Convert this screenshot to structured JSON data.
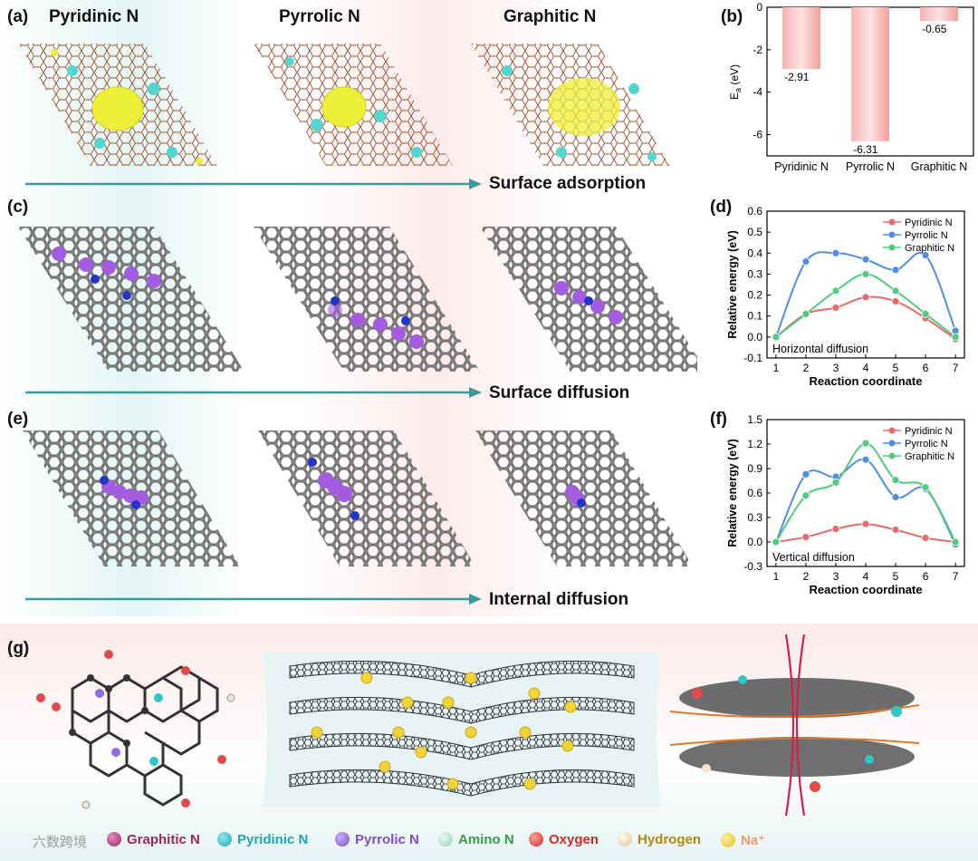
{
  "panels": {
    "a": "(a)",
    "b": "(b)",
    "c": "(c)",
    "d": "(d)",
    "e": "(e)",
    "f": "(f)",
    "g": "(g)"
  },
  "columns": {
    "pyridinic": "Pyridinic N",
    "pyrrolic": "Pyrrolic N",
    "graphitic": "Graphitic N"
  },
  "flows": {
    "adsorption": "Surface adsorption",
    "surface_diffusion": "Surface diffusion",
    "internal_diffusion": "Internal diffusion"
  },
  "legend": [
    {
      "label": "Graphitic N",
      "color": "#a0265a"
    },
    {
      "label": "Pyridinic N",
      "color": "#1ea6b5"
    },
    {
      "label": "Pyrrolic N",
      "color": "#7f4fcf"
    },
    {
      "label": "Amino N",
      "color": "#3c9a4c"
    },
    {
      "label": "Oxygen",
      "color": "#d42a2a"
    },
    {
      "label": "Hydrogen",
      "color": "#b8860b"
    },
    {
      "label": "Na⁺",
      "color": "#f39a6a"
    }
  ],
  "watermark": "六数跨境",
  "colors": {
    "pyridinic": "#e86b6b",
    "pyrrolic": "#4f8ee0",
    "graphitic": "#4fcd7d",
    "arrow": "#3e9a96",
    "bar": "#f39c9c"
  },
  "chart_data": [
    {
      "id": "b",
      "type": "bar",
      "categories": [
        "Pyridinic N",
        "Pyrrolic N",
        "Graphitic N"
      ],
      "values": [
        -2.91,
        -6.31,
        -0.65
      ],
      "data_labels": [
        "-2.91",
        "-6.31",
        "-0.65"
      ],
      "ylabel": "E",
      "ylabel_sub": "a",
      "ylabel_unit": " (eV)",
      "ylim": [
        -7,
        0
      ],
      "yticks": [
        "0",
        "-2",
        "-4",
        "-6"
      ]
    },
    {
      "id": "d",
      "type": "line",
      "x": [
        1,
        2,
        3,
        4,
        5,
        6,
        7
      ],
      "series": [
        {
          "name": "Pyridinic N",
          "values": [
            0,
            0.11,
            0.14,
            0.19,
            0.17,
            0.09,
            -0.01
          ]
        },
        {
          "name": "Pyrrolic N",
          "values": [
            0,
            0.36,
            0.4,
            0.37,
            0.32,
            0.39,
            0.03
          ]
        },
        {
          "name": "Graphitic N",
          "values": [
            0,
            0.11,
            0.22,
            0.3,
            0.22,
            0.11,
            0
          ]
        }
      ],
      "xlabel": "Reaction coordinate",
      "ylabel": "Relative energy (eV)",
      "ylim": [
        -0.1,
        0.6
      ],
      "yticks": [
        "-0.1",
        "0.0",
        "0.1",
        "0.2",
        "0.3",
        "0.4",
        "0.5",
        "0.6"
      ],
      "xticks": [
        "1",
        "2",
        "3",
        "4",
        "5",
        "6",
        "7"
      ],
      "annotation": "Horizontal diffusion"
    },
    {
      "id": "f",
      "type": "line",
      "x": [
        1,
        2,
        3,
        4,
        5,
        6,
        7
      ],
      "series": [
        {
          "name": "Pyridinic N",
          "values": [
            0,
            0.06,
            0.16,
            0.22,
            0.15,
            0.05,
            0
          ]
        },
        {
          "name": "Pyrrolic N",
          "values": [
            0,
            0.83,
            0.8,
            1.01,
            0.55,
            0.65,
            -0.03
          ]
        },
        {
          "name": "Graphitic N",
          "values": [
            0,
            0.57,
            0.73,
            1.21,
            0.76,
            0.67,
            0
          ]
        }
      ],
      "xlabel": "Reaction coordinate",
      "ylabel": "Relative energy (eV)",
      "ylim": [
        -0.3,
        1.5
      ],
      "yticks": [
        "-0.3",
        "0.0",
        "0.3",
        "0.6",
        "0.9",
        "1.2",
        "1.5"
      ],
      "xticks": [
        "1",
        "2",
        "3",
        "4",
        "5",
        "6",
        "7"
      ],
      "annotation": "Vertical diffusion"
    }
  ]
}
